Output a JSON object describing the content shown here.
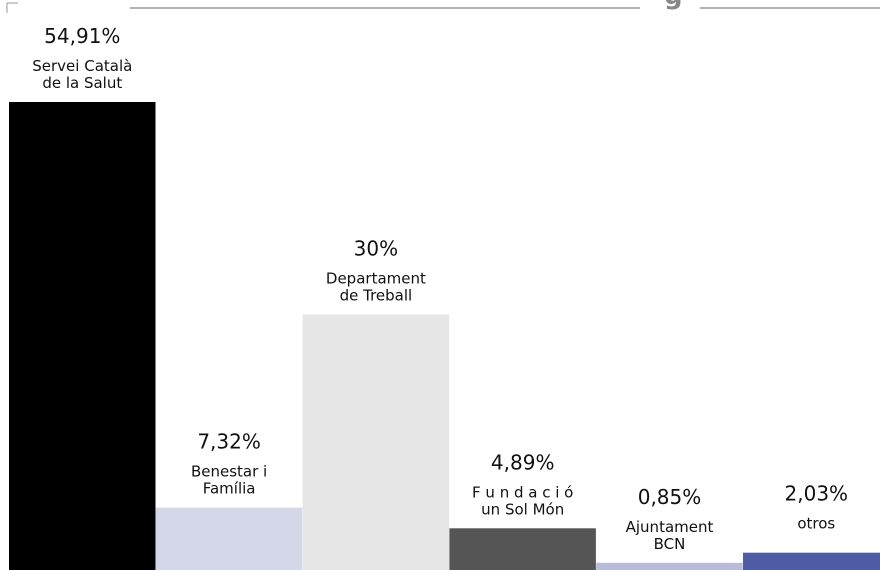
{
  "chart_data": {
    "type": "bar",
    "title_fragment": "g",
    "categories": [
      [
        "Servei Català",
        "de la Salut"
      ],
      [
        "Benestar i",
        "Família"
      ],
      [
        "Departament",
        "de Treball"
      ],
      [
        "F u n d a c i ó",
        "un Sol Món"
      ],
      [
        "Ajuntament",
        "BCN"
      ],
      [
        "otros"
      ]
    ],
    "values": [
      54.91,
      7.32,
      30,
      4.89,
      0.85,
      2.03
    ],
    "value_labels": [
      "54,91%",
      "7,32%",
      "30%",
      "4,89%",
      "0,85%",
      "2,03%"
    ],
    "colors": [
      "#000000",
      "#d3d7e8",
      "#e6e6e6",
      "#555555",
      "#b7bdd8",
      "#4f5ca6"
    ],
    "ylim": [
      0,
      54.91
    ],
    "grid": false,
    "legend": "none"
  }
}
